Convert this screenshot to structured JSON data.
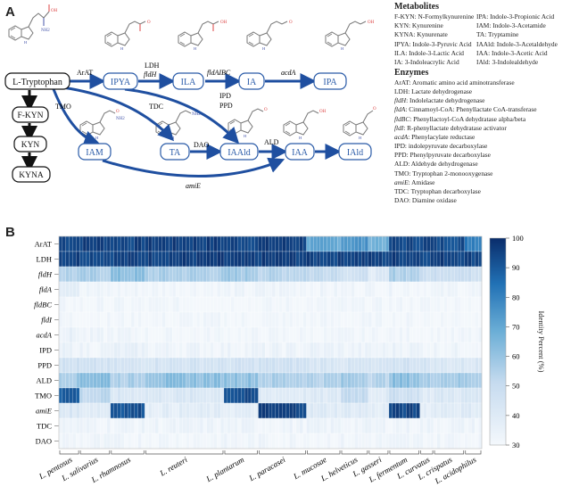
{
  "panelA": {
    "letter": "A"
  },
  "panelB": {
    "letter": "B"
  },
  "colors": {
    "arrow": "#1f4fa0",
    "node_border": "#2a5ba8",
    "black": "#111111",
    "heat_low": "#f4f8fc",
    "heat_high": "#0a2d6b"
  },
  "pathway": {
    "nodes": {
      "ltrp": "L-Tryptophan",
      "ipya": "IPYA",
      "ila": "ILA",
      "ia": "IA",
      "ipa": "IPA",
      "fkyn": "F-KYN",
      "kyn": "KYN",
      "kyna": "KYNA",
      "iam": "IAM",
      "ta": "TA",
      "iaald": "IAAld",
      "iaa": "IAA",
      "iald": "IAld"
    },
    "arrow_labels": {
      "arat": "ArAT",
      "ldh": "LDH",
      "fldh": "fldH",
      "fldabc": "fldAIBC",
      "acda": "acdA",
      "tmo": "TMO",
      "tdc": "TDC",
      "ipd": "IPD",
      "ppd": "PPD",
      "dao": "DAO",
      "ald": "ALD",
      "amie": "amiE"
    }
  },
  "legend": {
    "metabolites_title": "Metabolites",
    "metabolites": [
      "F-KYN: N-Formylkynurenine",
      "IPA: Indole-3-Propionic Acid",
      "KYN: Kynurenine",
      "IAM: Indole-3-Acetamide",
      "KYNA: Kynurenate",
      "TA: Tryptamine",
      "IPYA: Indole-3-Pyruvic Acid",
      "IAAld: Indole-3-Acetaldehyde",
      "ILA: Indole-3-Lactic Acid",
      "IAA: Indole-3-Acetic Acid",
      "IA: 3-Indoleacrylic Acid",
      "IAld: 3-Indolealdehyde"
    ],
    "enzymes_title": "Enzymes",
    "enzymes": [
      {
        "abbr": "ArAT",
        "desc": "Aromatic amino acid aminotransferase",
        "italic": false
      },
      {
        "abbr": "LDH",
        "desc": "Lactate dehydrogenase",
        "italic": false
      },
      {
        "abbr": "fldH",
        "desc": "Indolelactate dehydrogenase",
        "italic": true
      },
      {
        "abbr": "fldA",
        "desc": "Cinnamoyl-CoA: Phenyllactate CoA-transferase",
        "italic": true
      },
      {
        "abbr": "fldBC",
        "desc": "Phenyllactoyl-CoA dehydratase alpha/beta",
        "italic": true
      },
      {
        "abbr": "fldI",
        "desc": "R-phenyllactate dehydratase activator",
        "italic": true
      },
      {
        "abbr": "acdA",
        "desc": "Phenylacylate reductase",
        "italic": true
      },
      {
        "abbr": "IPD",
        "desc": "indolepyruvate decarboxylase",
        "italic": false
      },
      {
        "abbr": "PPD",
        "desc": "Phenylpyruvate decarboxylase",
        "italic": false
      },
      {
        "abbr": "ALD",
        "desc": "Aldehyde dehydrogenase",
        "italic": false
      },
      {
        "abbr": "TMO",
        "desc": "Tryptophan 2-monooxygenase",
        "italic": false
      },
      {
        "abbr": "amiE",
        "desc": "Amidase",
        "italic": true
      },
      {
        "abbr": "TDC",
        "desc": "Tryptophan decarboxylase",
        "italic": false
      },
      {
        "abbr": "DAO",
        "desc": "Diamine oxidase",
        "italic": false
      }
    ]
  },
  "chart_data": {
    "type": "heatmap",
    "rows": [
      {
        "label": "ArAT",
        "italic": false
      },
      {
        "label": "LDH",
        "italic": false
      },
      {
        "label": "fldH",
        "italic": true
      },
      {
        "label": "fldA",
        "italic": true
      },
      {
        "label": "fldBC",
        "italic": true
      },
      {
        "label": "fldI",
        "italic": true
      },
      {
        "label": "acdA",
        "italic": true
      },
      {
        "label": "IPD",
        "italic": false
      },
      {
        "label": "PPD",
        "italic": false
      },
      {
        "label": "ALD",
        "italic": false
      },
      {
        "label": "TMO",
        "italic": false
      },
      {
        "label": "amiE",
        "italic": true
      },
      {
        "label": "TDC",
        "italic": false
      },
      {
        "label": "DAO",
        "italic": false
      }
    ],
    "column_groups": [
      {
        "species": "L. pentosus",
        "columns": 6
      },
      {
        "species": "L. salivarius",
        "columns": 9
      },
      {
        "species": "L. rhamnosus",
        "columns": 10
      },
      {
        "species": "L. reuteri",
        "columns": 23
      },
      {
        "species": "L. plantarum",
        "columns": 10
      },
      {
        "species": "L. paracasei",
        "columns": 14
      },
      {
        "species": "L. mucosae",
        "columns": 10
      },
      {
        "species": "L. helveticus",
        "columns": 8
      },
      {
        "species": "L. gasseri",
        "columns": 6
      },
      {
        "species": "L. fermentum",
        "columns": 9
      },
      {
        "species": "L. curvatus",
        "columns": 4
      },
      {
        "species": "L. crispatus",
        "columns": 9
      },
      {
        "species": "L. acidophilus",
        "columns": 5
      }
    ],
    "colorbar": {
      "title": "Identity Percent (%)",
      "ticks": [
        30,
        40,
        50,
        60,
        70,
        80,
        90,
        100
      ],
      "range": [
        30,
        100
      ]
    },
    "approx_group_values": {
      "ArAT": [
        95,
        96,
        95,
        96,
        95,
        96,
        70,
        75,
        68,
        94,
        95,
        93,
        82
      ],
      "LDH": [
        96,
        95,
        95,
        96,
        95,
        96,
        95,
        96,
        95,
        96,
        95,
        96,
        95
      ],
      "fldH": [
        55,
        56,
        62,
        56,
        58,
        54,
        52,
        47,
        40,
        56,
        48,
        50,
        48
      ],
      "fldA": [
        40,
        32,
        32,
        32,
        32,
        33,
        32,
        32,
        32,
        32,
        32,
        32,
        32
      ],
      "fldBC": [
        31,
        31,
        31,
        31,
        31,
        31,
        31,
        31,
        31,
        31,
        31,
        31,
        31
      ],
      "fldI": [
        31,
        31,
        31,
        31,
        31,
        31,
        31,
        31,
        31,
        31,
        31,
        31,
        31
      ],
      "acdA": [
        35,
        32,
        32,
        31,
        31,
        31,
        31,
        31,
        31,
        31,
        31,
        31,
        31
      ],
      "IPD": [
        34,
        33,
        35,
        33,
        33,
        33,
        34,
        33,
        33,
        34,
        33,
        33,
        33
      ],
      "PPD": [
        46,
        45,
        44,
        45,
        45,
        46,
        44,
        43,
        42,
        46,
        44,
        42,
        42
      ],
      "ALD": [
        58,
        64,
        56,
        62,
        62,
        56,
        55,
        58,
        54,
        62,
        56,
        58,
        57
      ],
      "TMO": [
        90,
        52,
        42,
        42,
        92,
        40,
        40,
        52,
        40,
        48,
        40,
        42,
        42
      ],
      "amiE": [
        42,
        40,
        92,
        38,
        38,
        95,
        40,
        40,
        38,
        94,
        38,
        40,
        40
      ],
      "TDC": [
        33,
        33,
        33,
        33,
        33,
        33,
        33,
        33,
        33,
        33,
        33,
        33,
        33
      ],
      "DAO": [
        32,
        32,
        32,
        32,
        32,
        32,
        32,
        32,
        32,
        32,
        32,
        32,
        32
      ]
    }
  }
}
